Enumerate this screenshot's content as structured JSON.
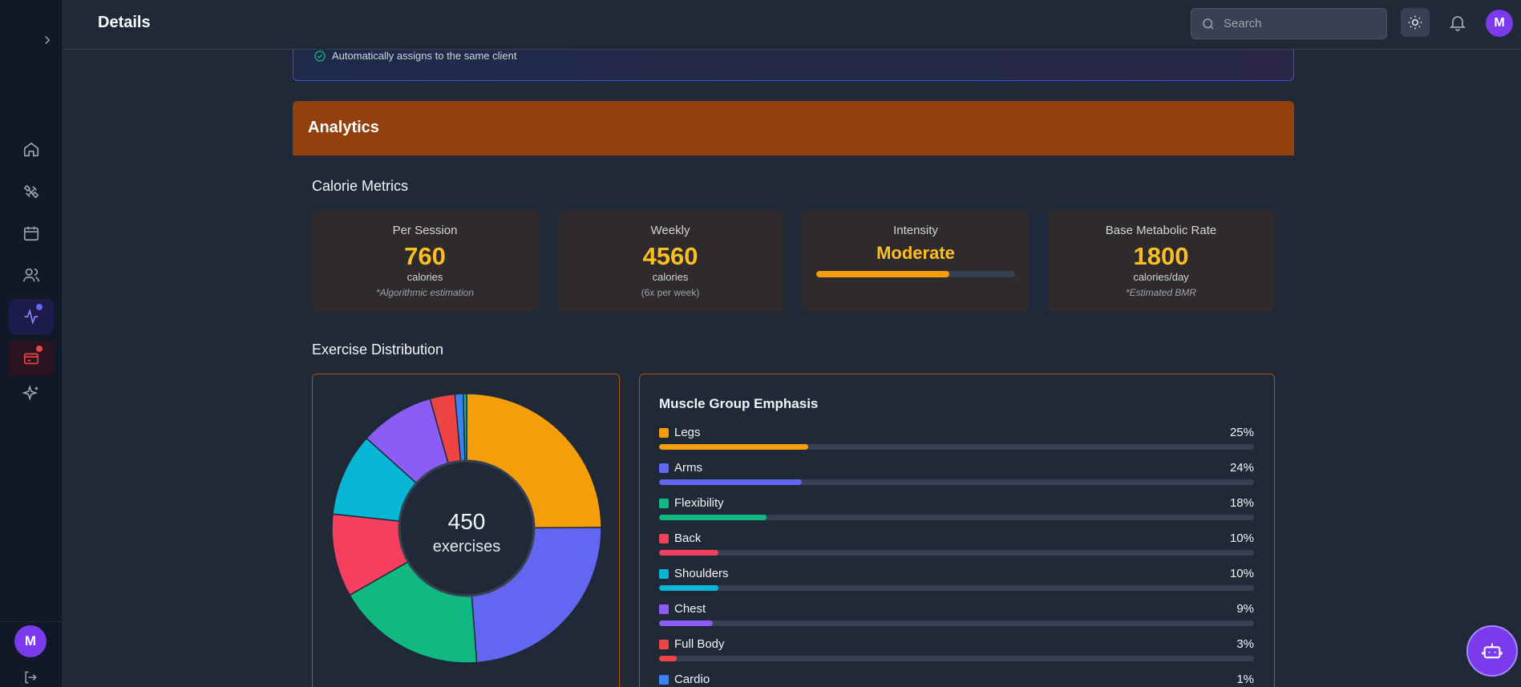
{
  "header": {
    "title": "Details",
    "search_placeholder": "Search",
    "avatar_initial": "M"
  },
  "sidebar": {
    "items": [
      {
        "name": "home",
        "icon": "home-icon"
      },
      {
        "name": "workouts",
        "icon": "dumbbell-icon"
      },
      {
        "name": "calendar",
        "icon": "calendar-icon"
      },
      {
        "name": "clients",
        "icon": "users-icon"
      },
      {
        "name": "activity",
        "icon": "activity-icon",
        "active": true,
        "badge_color": "#6366f1"
      },
      {
        "name": "billing",
        "icon": "credit-card-icon",
        "badge_color": "#ef4444"
      },
      {
        "name": "ai",
        "icon": "sparkles-icon"
      }
    ],
    "avatar_initial": "M"
  },
  "banner": {
    "text": "Automatically assigns to the same client"
  },
  "analytics": {
    "title": "Analytics"
  },
  "calorie_metrics": {
    "title": "Calorie Metrics",
    "cards": [
      {
        "label": "Per Session",
        "value": "760",
        "unit": "calories",
        "note": "*Algorithmic estimation"
      },
      {
        "label": "Weekly",
        "value": "4560",
        "unit": "calories",
        "note": "(6x per week)"
      },
      {
        "label": "Intensity",
        "value": "Moderate",
        "level": 0.67
      },
      {
        "label": "Base Metabolic Rate",
        "value": "1800",
        "unit": "calories/day",
        "note": "*Estimated BMR"
      }
    ]
  },
  "exercise_distribution": {
    "title": "Exercise Distribution",
    "total_value": "450",
    "total_label": "exercises"
  },
  "muscle_groups": {
    "title": "Muscle Group Emphasis",
    "items": [
      {
        "name": "Legs",
        "pct": "25%",
        "value": 25,
        "color": "#f59e0b"
      },
      {
        "name": "Arms",
        "pct": "24%",
        "value": 24,
        "color": "#6366f1"
      },
      {
        "name": "Flexibility",
        "pct": "18%",
        "value": 18,
        "color": "#10b981"
      },
      {
        "name": "Back",
        "pct": "10%",
        "value": 10,
        "color": "#f43f5e"
      },
      {
        "name": "Shoulders",
        "pct": "10%",
        "value": 10,
        "color": "#06b6d4"
      },
      {
        "name": "Chest",
        "pct": "9%",
        "value": 9,
        "color": "#8b5cf6"
      },
      {
        "name": "Full Body",
        "pct": "3%",
        "value": 3,
        "color": "#ef4444"
      },
      {
        "name": "Cardio",
        "pct": "1%",
        "value": 1,
        "color": "#3b82f6"
      }
    ]
  },
  "chart_data": {
    "type": "pie",
    "categories": [
      "Legs",
      "Arms",
      "Flexibility",
      "Back",
      "Shoulders",
      "Chest",
      "Full Body",
      "Cardio",
      "Other"
    ],
    "values": [
      25,
      24,
      18,
      10,
      10,
      9,
      3,
      1,
      0.4
    ],
    "colors": [
      "#f59e0b",
      "#6366f1",
      "#10b981",
      "#f43f5e",
      "#06b6d4",
      "#8b5cf6",
      "#ef4444",
      "#3b82f6",
      "#10b981"
    ],
    "center_text": "450 exercises"
  }
}
